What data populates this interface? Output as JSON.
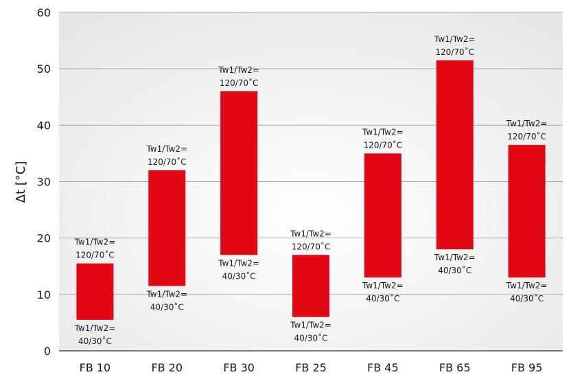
{
  "chart_data": {
    "type": "bar",
    "subtype": "floating-range",
    "title": "",
    "xlabel": "",
    "ylabel": "Δt [°C]",
    "ylim": [
      0,
      60
    ],
    "yticks": [
      0,
      10,
      20,
      30,
      40,
      50,
      60
    ],
    "grid": true,
    "categories": [
      "FB 10",
      "FB 20",
      "FB 30",
      "FB 25",
      "FB 45",
      "FB 65",
      "FB 95"
    ],
    "ranges": [
      {
        "low": 5.5,
        "high": 15.5
      },
      {
        "low": 11.5,
        "high": 32
      },
      {
        "low": 17,
        "high": 46
      },
      {
        "low": 6,
        "high": 17
      },
      {
        "low": 13,
        "high": 35
      },
      {
        "low": 18,
        "high": 51.5
      },
      {
        "low": 13,
        "high": 36.5
      }
    ],
    "high_label": [
      "Tw1/Tw2=",
      "120/70˚C"
    ],
    "low_label": [
      "Tw1/Tw2=",
      "40/30˚C"
    ],
    "bar_color": "#e30613"
  }
}
